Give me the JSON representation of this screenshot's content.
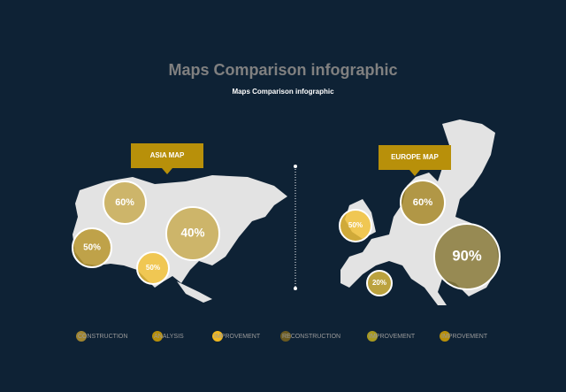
{
  "header": {
    "title": "Maps Comparison infographic",
    "subtitle": "Maps Comparison infographic"
  },
  "panels": [
    {
      "label": "ASIA MAP",
      "bubbles": [
        {
          "label": "60%",
          "color": "#c9ad55"
        },
        {
          "label": "40%",
          "color": "#c9ad55"
        },
        {
          "label": "50%",
          "color": "#b8962e"
        },
        {
          "label": "50%",
          "color": "#f2c23a"
        }
      ]
    },
    {
      "label": "EUROPE MAP",
      "bubbles": [
        {
          "label": "60%",
          "color": "#a8892a"
        },
        {
          "label": "90%",
          "color": "#8a7a3a"
        },
        {
          "label": "50%",
          "color": "#f2c23a"
        },
        {
          "label": "20%",
          "color": "#d9b840"
        }
      ]
    }
  ],
  "legend": [
    {
      "label": "CONSTRUCTION",
      "color": "#a08530"
    },
    {
      "label": "ANALYSIS",
      "color": "#b8900a"
    },
    {
      "label": "IMPROVEMENT",
      "color": "#f0b820"
    },
    {
      "label": "RECONSTRUCTION",
      "color": "#6b5a20"
    },
    {
      "label": "IMPROVEMENT",
      "color": "#a89a20"
    },
    {
      "label": "IMPROVEMENT",
      "color": "#b8900a"
    }
  ]
}
